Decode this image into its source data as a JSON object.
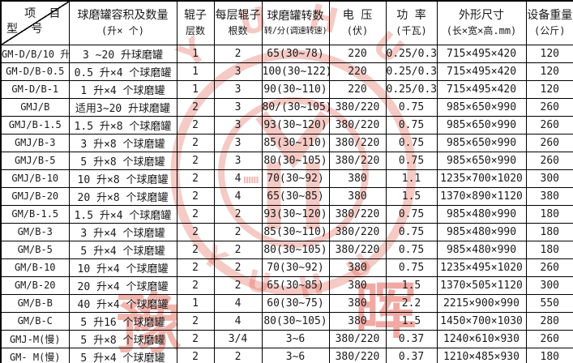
{
  "header": {
    "corner": {
      "top_right": "项 目",
      "bottom_left": "型 号"
    },
    "columns": [
      {
        "line1": "球磨罐容积及数量",
        "line2": "(升× 个)"
      },
      {
        "line1": "辊子",
        "line2": "层数"
      },
      {
        "line1": "每层辊子",
        "line2": "根数"
      },
      {
        "line1": "球磨罐转数",
        "line2": "转/分(调速转速)"
      },
      {
        "line1": "电 压",
        "line2": "(伏)"
      },
      {
        "line1": "功 率",
        "line2": "(千瓦)"
      },
      {
        "line1": "外形尺寸",
        "line2": "(长×宽×高.mm)"
      },
      {
        "line1": "设备重量",
        "line2": "(公斤)"
      }
    ]
  },
  "rows": [
    [
      "GM-D/B/10 升",
      "3 ~20 升球磨罐",
      "1",
      "2",
      "65(30~78)",
      "220",
      "0.25/0.37",
      "715×495×420",
      "120"
    ],
    [
      "GM-D/B-0.5",
      "0.5 升×4 个球磨罐",
      "1",
      "3",
      "100(30~122)",
      "220",
      "0.25/0.37",
      "715×495×420",
      "120"
    ],
    [
      "GM-D/B-1",
      "1 升×4 个球磨罐",
      "1",
      "3",
      "90(30~110)",
      "220",
      "0.25/0.37",
      "715×495×420",
      "120"
    ],
    [
      "GMJ/B",
      "适用3~20 升球磨罐",
      "2",
      "3",
      "80/(30~105)",
      "380/220",
      "0.75",
      "985×650×990",
      "260"
    ],
    [
      "GMJ/B-1.5",
      "1.5 升×8 个球磨罐",
      "2",
      "3",
      "93(30~120)",
      "380/220",
      "0.75",
      "985×650×990",
      "260"
    ],
    [
      "GMJ/B-3",
      "3 升×8 个球磨罐",
      "2",
      "3",
      "85(30~110)",
      "380/220",
      "0.75",
      "985×650×990",
      "260"
    ],
    [
      "GMJ/B-5",
      "5 升×8 个球磨罐",
      "2",
      "3",
      "80(30~105)",
      "380/220",
      "0.75",
      "985×650×990",
      "260"
    ],
    [
      "GMJ/B-10",
      "10 升×8 个球磨罐",
      "2",
      "4",
      "70(30~92)",
      "380",
      "1.1",
      "1235×700×1020",
      "300"
    ],
    [
      "GMJ/B-20",
      "20 升×8 个球磨罐",
      "2",
      "4",
      "65(30~85)",
      "380",
      "1.5",
      "1370×890×1120",
      "380"
    ],
    [
      "GM/B-1.5",
      "1.5 升×4 个球磨罐",
      "2",
      "2",
      "93(30~120)",
      "380/220",
      "0.75",
      "985×480×990",
      "180"
    ],
    [
      "GM/B-3",
      "3 升×4 个球磨罐",
      "2",
      "2",
      "85(30~110)",
      "380/220",
      "0.75",
      "985×480×990",
      "180"
    ],
    [
      "GM/B-5",
      "5 升×4 个球磨罐",
      "2",
      "2",
      "80(30~105)",
      "380/220",
      "0.75",
      "985×480×990",
      "180"
    ],
    [
      "GM/B-10",
      "10 升×4 个球磨罐",
      "2",
      "2",
      "70(30~92)",
      "380",
      "0.75",
      "1235×495×1020",
      "260"
    ],
    [
      "GM/B-20",
      "20 升×4 个球磨罐",
      "2",
      "2",
      "65(30~85)",
      "380",
      "1.5",
      "1370×505×1120",
      "300"
    ],
    [
      "GM/B-B",
      "40 升×4 个球磨罐",
      "1",
      "4",
      "60(30~75)",
      "380",
      "2.2",
      "2215×900×990",
      "550"
    ],
    [
      "GM/B-C",
      "5 升16 个球磨罐",
      "2",
      "4",
      "80(30~105)",
      "380",
      "1.5",
      "1450×700×1030",
      "280"
    ],
    [
      "GMJ-M(慢)",
      "5 升×8 个球磨罐",
      "2",
      "3/4",
      "3~6",
      "380/220",
      "0.37",
      "1240×610×930",
      "260"
    ],
    [
      "GM- M(慢)",
      "5 升×4 个球磨罐",
      "2",
      "2",
      "3~6",
      "380/220",
      "0.37",
      "1210×485×930",
      "180"
    ]
  ],
  "watermark": {
    "color": "#e05040",
    "arc_text_top": "Y U H U I",
    "arc_text_bottom": "Y U H U I",
    "char_left": "豫",
    "char_right": "晖",
    "ticks": "IIIIII"
  }
}
